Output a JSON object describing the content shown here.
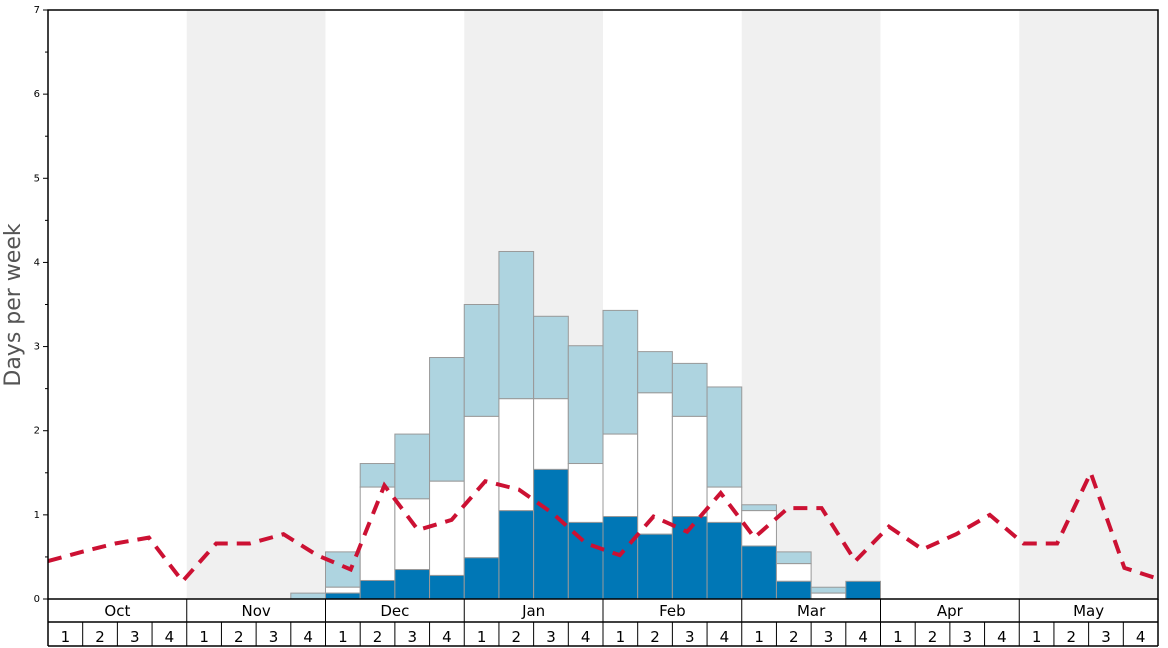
{
  "chart_data": {
    "type": "bar",
    "ylabel": "Days per week",
    "ylim": [
      0,
      7
    ],
    "yticks": [
      "0",
      "1",
      "2",
      "3",
      "4",
      "5",
      "6",
      "7"
    ],
    "months": [
      "Oct",
      "Nov",
      "Dec",
      "Jan",
      "Feb",
      "Mar",
      "Apr",
      "May"
    ],
    "week_labels": [
      "1",
      "2",
      "3",
      "4"
    ],
    "grid": false,
    "stacked_bars": {
      "bottom_color": "#0077b6",
      "middle_color": "#ffffff",
      "top_color": "#aed4e0",
      "bottom": [
        0,
        0,
        0,
        0,
        0,
        0,
        0,
        0,
        0.07,
        0.22,
        0.35,
        0.28,
        0.49,
        1.05,
        1.54,
        0.91,
        0.98,
        0.77,
        0.98,
        0.91,
        0.63,
        0.21,
        0,
        0.21,
        0,
        0,
        0,
        0,
        0,
        0,
        0,
        0
      ],
      "middle_top": [
        0,
        0,
        0,
        0,
        0,
        0,
        0,
        0,
        0.14,
        1.33,
        1.19,
        1.4,
        2.17,
        2.38,
        2.38,
        1.61,
        1.96,
        2.45,
        2.17,
        1.33,
        1.05,
        0.42,
        0.07,
        0.21,
        0,
        0,
        0,
        0,
        0,
        0,
        0,
        0
      ],
      "total": [
        0,
        0,
        0,
        0,
        0,
        0,
        0,
        0.07,
        0.56,
        1.61,
        1.96,
        2.87,
        3.5,
        4.13,
        3.36,
        3.01,
        3.43,
        2.94,
        2.8,
        2.52,
        1.12,
        0.56,
        0.14,
        0.21,
        0,
        0,
        0,
        0,
        0,
        0,
        0,
        0
      ]
    },
    "dashed_line": {
      "color": "#cc1133",
      "values": [
        0.45,
        0.56,
        0.66,
        0.73,
        0.21,
        0.66,
        0.66,
        0.77,
        0.52,
        0.35,
        1.35,
        0.82,
        0.94,
        1.4,
        1.3,
        1.02,
        0.66,
        0.52,
        0.98,
        0.8,
        1.26,
        0.73,
        1.08,
        1.08,
        0.45,
        0.86,
        0.59,
        0.77,
        1.0,
        0.66,
        0.66,
        1.5,
        0.37,
        0.24
      ]
    },
    "shaded_months": [
      "Nov",
      "Jan",
      "Mar",
      "May"
    ],
    "shade_color": "#f0f0f0"
  }
}
